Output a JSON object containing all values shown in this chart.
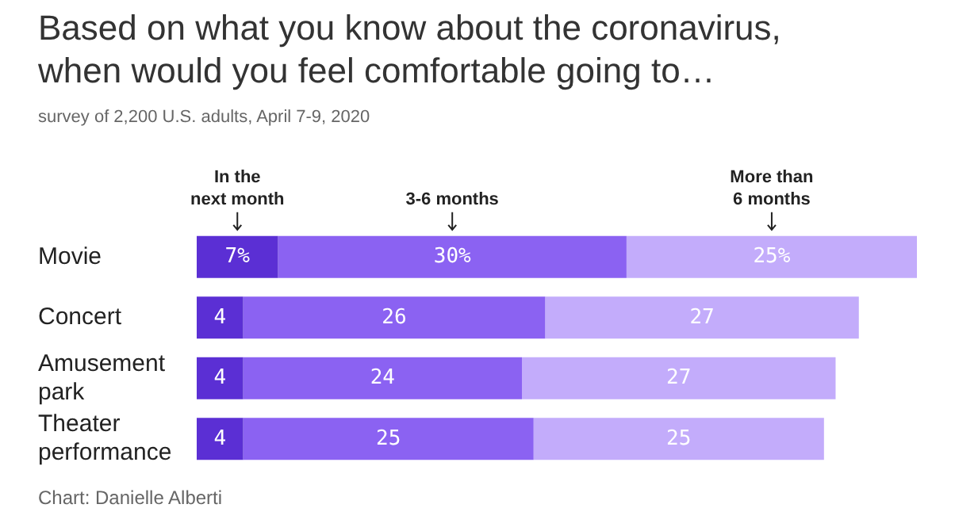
{
  "chart_data": {
    "type": "bar",
    "orientation": "horizontal",
    "stacked": true,
    "title": "Based on what you know about the coronavirus, when would you feel comfortable going to…",
    "subtitle": "survey of 2,200 U.S. adults, April 7-9, 2020",
    "categories": [
      "Movie",
      "Concert",
      "Amusement park",
      "Theater performance"
    ],
    "series": [
      {
        "name": "In the next month",
        "color": "#5b2fd4",
        "values": [
          7,
          4,
          4,
          4
        ],
        "value_labels": [
          "7%",
          "4",
          "4",
          "4"
        ]
      },
      {
        "name": "3-6 months",
        "color": "#8b62f2",
        "values": [
          30,
          26,
          24,
          25
        ],
        "value_labels": [
          "30%",
          "26",
          "24",
          "25"
        ]
      },
      {
        "name": "More than 6 months",
        "color": "#c3acfb",
        "values": [
          25,
          27,
          27,
          25
        ],
        "value_labels": [
          "25%",
          "27",
          "27",
          "25"
        ]
      }
    ],
    "legend": false,
    "annotations": [
      "Chart: Danielle Alberti"
    ]
  }
}
